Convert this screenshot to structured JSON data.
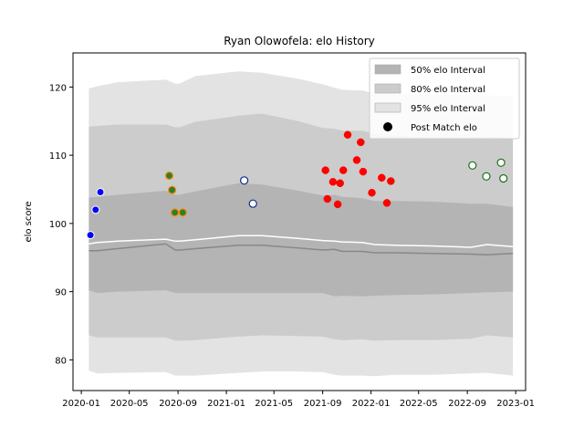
{
  "chart_data": {
    "type": "line",
    "title": "Ryan Olowofela: elo History",
    "xlabel": "",
    "ylabel": "elo score",
    "ylim": [
      75.5,
      125
    ],
    "xlim": [
      "2019-12-11",
      "2023-01-26"
    ],
    "grid": false,
    "legend_position": "upper right",
    "y_ticks": [
      80,
      90,
      100,
      110,
      120
    ],
    "x_ticks": [
      {
        "date": "2020-01-01",
        "label": "2020-01"
      },
      {
        "date": "2020-05-01",
        "label": "2020-05"
      },
      {
        "date": "2020-09-01",
        "label": "2020-09"
      },
      {
        "date": "2021-01-01",
        "label": "2021-01"
      },
      {
        "date": "2021-05-01",
        "label": "2021-05"
      },
      {
        "date": "2021-09-01",
        "label": "2021-09"
      },
      {
        "date": "2022-01-01",
        "label": "2022-01"
      },
      {
        "date": "2022-05-01",
        "label": "2022-05"
      },
      {
        "date": "2022-09-01",
        "label": "2022-09"
      },
      {
        "date": "2023-01-01",
        "label": "2023-01"
      }
    ],
    "legend": [
      {
        "label": "50% elo Interval",
        "kind": "band50"
      },
      {
        "label": "80% elo Interval",
        "kind": "band80"
      },
      {
        "label": "95% elo Interval",
        "kind": "band95"
      },
      {
        "label": "Post Match elo",
        "kind": "marker"
      }
    ],
    "bands": {
      "dates": [
        "2020-01-20",
        "2020-02-10",
        "2020-04-01",
        "2020-08-01",
        "2020-08-25",
        "2020-09-05",
        "2020-10-15",
        "2021-02-01",
        "2021-04-01",
        "2021-07-01",
        "2021-09-01",
        "2021-10-01",
        "2021-10-20",
        "2021-12-10",
        "2022-01-10",
        "2022-03-01",
        "2022-06-01",
        "2022-09-10",
        "2022-10-20",
        "2022-12-25"
      ],
      "mean": [
        96.0,
        96.0,
        96.3,
        97.0,
        96.1,
        96.1,
        96.3,
        96.8,
        96.8,
        96.4,
        96.1,
        96.2,
        95.9,
        95.9,
        95.7,
        95.7,
        95.6,
        95.5,
        95.4,
        95.6
      ],
      "median": [
        97.0,
        97.2,
        97.4,
        97.7,
        97.4,
        97.4,
        97.6,
        98.2,
        98.2,
        97.8,
        97.5,
        97.4,
        97.3,
        97.2,
        96.9,
        96.8,
        96.7,
        96.5,
        96.9,
        96.6
      ],
      "p50_low": [
        90.2,
        89.8,
        90.0,
        90.2,
        89.8,
        89.8,
        89.8,
        89.8,
        89.8,
        89.8,
        89.8,
        89.3,
        89.4,
        89.3,
        89.4,
        89.5,
        89.6,
        89.8,
        89.9,
        90.0
      ],
      "p50_high": [
        103.8,
        103.9,
        104.2,
        104.8,
        104.2,
        104.2,
        104.7,
        105.9,
        105.7,
        104.8,
        104.1,
        104.2,
        103.9,
        103.7,
        103.3,
        103.3,
        103.2,
        102.9,
        102.9,
        102.4
      ],
      "p80_low": [
        83.6,
        83.3,
        83.3,
        83.3,
        82.8,
        82.8,
        82.9,
        83.4,
        83.6,
        83.5,
        83.4,
        83.0,
        82.9,
        83.0,
        82.8,
        82.9,
        82.9,
        83.1,
        83.6,
        83.3
      ],
      "p80_high": [
        114.2,
        114.3,
        114.5,
        114.5,
        114.1,
        114.1,
        114.9,
        115.8,
        116.1,
        115.0,
        114.0,
        113.9,
        113.6,
        113.6,
        113.1,
        112.9,
        112.6,
        112.6,
        112.8,
        112.3
      ],
      "p95_low": [
        78.4,
        78.0,
        78.1,
        78.2,
        77.7,
        77.7,
        77.7,
        78.1,
        78.3,
        78.3,
        78.2,
        77.8,
        77.7,
        77.7,
        77.6,
        77.8,
        77.8,
        78.0,
        78.1,
        77.7
      ],
      "p95_high": [
        119.8,
        120.1,
        120.7,
        121.1,
        120.5,
        120.5,
        121.6,
        122.3,
        122.1,
        121.2,
        120.4,
        119.9,
        119.6,
        119.5,
        119.0,
        119.0,
        118.9,
        118.8,
        118.8,
        118.7
      ]
    },
    "series": [
      {
        "style": "blue-filled",
        "points": [
          {
            "x": "2020-01-24",
            "y": 98.3
          },
          {
            "x": "2020-02-06",
            "y": 102.0
          },
          {
            "x": "2020-02-18",
            "y": 104.6
          }
        ]
      },
      {
        "style": "green-filled-orange-edge",
        "points": [
          {
            "x": "2020-08-10",
            "y": 107.0
          },
          {
            "x": "2020-08-17",
            "y": 104.9
          },
          {
            "x": "2020-08-24",
            "y": 101.6
          },
          {
            "x": "2020-09-13",
            "y": 101.6
          }
        ]
      },
      {
        "style": "blue-hollow",
        "points": [
          {
            "x": "2021-02-15",
            "y": 106.3
          },
          {
            "x": "2021-03-09",
            "y": 102.9
          }
        ]
      },
      {
        "style": "red-filled",
        "points": [
          {
            "x": "2021-09-08",
            "y": 107.8
          },
          {
            "x": "2021-09-13",
            "y": 103.6
          },
          {
            "x": "2021-09-27",
            "y": 106.1
          },
          {
            "x": "2021-10-09",
            "y": 102.8
          },
          {
            "x": "2021-10-15",
            "y": 105.9
          },
          {
            "x": "2021-10-23",
            "y": 107.8
          },
          {
            "x": "2021-11-03",
            "y": 113.0
          },
          {
            "x": "2021-11-26",
            "y": 109.3
          },
          {
            "x": "2021-12-06",
            "y": 111.9
          },
          {
            "x": "2021-12-12",
            "y": 107.6
          },
          {
            "x": "2022-01-03",
            "y": 104.5
          },
          {
            "x": "2022-01-28",
            "y": 106.7
          },
          {
            "x": "2022-02-10",
            "y": 103.0
          },
          {
            "x": "2022-02-20",
            "y": 106.2
          }
        ]
      },
      {
        "style": "green-hollow",
        "points": [
          {
            "x": "2022-09-14",
            "y": 108.5
          },
          {
            "x": "2022-10-19",
            "y": 106.9
          },
          {
            "x": "2022-11-25",
            "y": 108.9
          },
          {
            "x": "2022-12-01",
            "y": 106.6
          }
        ]
      }
    ]
  }
}
